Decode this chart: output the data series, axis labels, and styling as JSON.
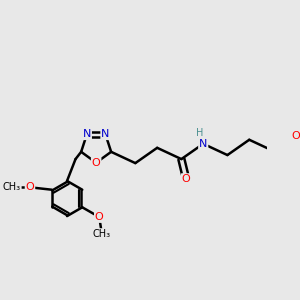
{
  "bg_color": "#e8e8e8",
  "atom_colors": {
    "C": "#000000",
    "N": "#0000cc",
    "O": "#ff0000",
    "H": "#4a9090"
  },
  "bond_color": "#000000",
  "bond_width": 1.8,
  "figsize": [
    3.0,
    3.0
  ],
  "dpi": 100,
  "xlim": [
    -0.5,
    1.6
  ],
  "ylim": [
    -1.2,
    0.7
  ]
}
